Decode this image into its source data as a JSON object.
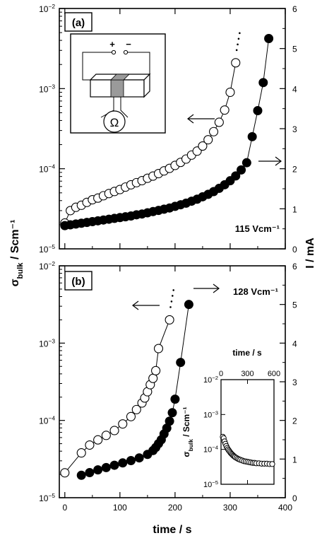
{
  "chart_data": [
    {
      "panel": "(a)",
      "type": "scatter",
      "annotation": "115 Vcm⁻¹",
      "xlabel": "time / s",
      "xlim": [
        -10,
        400
      ],
      "xticks": [
        0,
        100,
        200,
        300,
        400
      ],
      "ylabel_left": "σbulk / Scm⁻¹",
      "ylim_left": [
        1e-05,
        0.01
      ],
      "yscale_left": "log",
      "ylabel_right": "I / mA",
      "ylim_right": [
        0,
        6
      ],
      "yticks_right": [
        0,
        1,
        2,
        3,
        4,
        5,
        6
      ],
      "series": [
        {
          "marker": "open-circle",
          "axis": "left",
          "x": [
            0,
            10,
            20,
            30,
            40,
            50,
            60,
            70,
            80,
            90,
            100,
            110,
            120,
            130,
            140,
            150,
            160,
            170,
            180,
            190,
            200,
            210,
            220,
            230,
            240,
            250,
            260,
            270,
            280,
            290,
            300,
            310
          ],
          "y": [
            2.1e-05,
            3e-05,
            3.3e-05,
            3.5e-05,
            3.8e-05,
            4.1e-05,
            4.3e-05,
            4.6e-05,
            4.9e-05,
            5.2e-05,
            5.5e-05,
            5.9e-05,
            6.3e-05,
            6.7e-05,
            7.1e-05,
            7.6e-05,
            8.1e-05,
            8.7e-05,
            9.4e-05,
            0.000101,
            0.00011,
            0.00012,
            0.000132,
            0.000148,
            0.000166,
            0.000192,
            0.00023,
            0.00029,
            0.00038,
            0.00054,
            0.0009,
            0.0021
          ]
        },
        {
          "marker": "filled-circle",
          "axis": "right",
          "x": [
            0,
            10,
            20,
            30,
            40,
            50,
            60,
            70,
            80,
            90,
            100,
            110,
            120,
            130,
            140,
            150,
            160,
            170,
            180,
            190,
            200,
            210,
            220,
            230,
            240,
            250,
            260,
            270,
            280,
            290,
            300,
            310,
            320,
            330,
            340,
            350,
            360,
            370
          ],
          "y": [
            0.58,
            0.6,
            0.62,
            0.64,
            0.66,
            0.68,
            0.7,
            0.72,
            0.74,
            0.76,
            0.78,
            0.8,
            0.82,
            0.85,
            0.87,
            0.9,
            0.93,
            0.96,
            0.99,
            1.02,
            1.06,
            1.1,
            1.14,
            1.19,
            1.24,
            1.3,
            1.36,
            1.43,
            1.51,
            1.6,
            1.7,
            1.82,
            1.97,
            2.15,
            2.8,
            3.45,
            4.15,
            5.25
          ]
        }
      ]
    },
    {
      "panel": "(b)",
      "type": "scatter",
      "annotation": "128 Vcm⁻¹",
      "xlabel": "time / s",
      "xlim": [
        -10,
        400
      ],
      "xticks": [
        0,
        100,
        200,
        300,
        400
      ],
      "ylabel_left": "σbulk / Scm⁻¹",
      "ylim_left": [
        1e-05,
        0.01
      ],
      "yscale_left": "log",
      "ylabel_right": "I / mA",
      "ylim_right": [
        0,
        6
      ],
      "yticks_right": [
        0,
        1,
        2,
        3,
        4,
        5,
        6
      ],
      "series": [
        {
          "marker": "open-circle",
          "axis": "left",
          "x": [
            0,
            30,
            45,
            60,
            75,
            90,
            105,
            120,
            130,
            140,
            145,
            150,
            155,
            160,
            165,
            170,
            190
          ],
          "y": [
            2.1e-05,
            3.8e-05,
            4.8e-05,
            5.6e-05,
            6.4e-05,
            7.4e-05,
            9e-05,
            0.000112,
            0.000138,
            0.000168,
            0.000195,
            0.000235,
            0.00029,
            0.00035,
            0.00044,
            0.00085,
            0.002
          ]
        },
        {
          "marker": "filled-circle",
          "axis": "right",
          "x": [
            30,
            45,
            60,
            75,
            90,
            105,
            120,
            135,
            150,
            160,
            165,
            170,
            175,
            180,
            185,
            190,
            195,
            200,
            210,
            225
          ],
          "y": [
            0.58,
            0.65,
            0.72,
            0.78,
            0.84,
            0.9,
            0.96,
            1.03,
            1.12,
            1.22,
            1.3,
            1.4,
            1.5,
            1.65,
            1.8,
            1.98,
            2.2,
            2.55,
            3.5,
            5.0
          ]
        }
      ],
      "inset": {
        "type": "scatter",
        "xlabel": "time / s",
        "xlim": [
          0,
          600
        ],
        "xticks": [
          0,
          300,
          600
        ],
        "ylabel": "σbulk / Scm⁻¹",
        "ylim": [
          1e-05,
          0.01
        ],
        "yscale": "log",
        "x": [
          20,
          30,
          40,
          50,
          60,
          70,
          80,
          90,
          100,
          110,
          120,
          130,
          140,
          150,
          160,
          175,
          190,
          205,
          220,
          240,
          260,
          280,
          300,
          320,
          340,
          360,
          380,
          400,
          430,
          460,
          490,
          520,
          550,
          580
        ],
        "y": [
          0.00023,
          0.00021,
          0.00017,
          0.000145,
          0.000125,
          0.00011,
          0.0001,
          9.2e-05,
          8.5e-05,
          7.9e-05,
          7.4e-05,
          7e-05,
          6.6e-05,
          6.3e-05,
          6e-05,
          5.7e-05,
          5.4e-05,
          5.2e-05,
          5e-05,
          4.8e-05,
          4.6e-05,
          4.5e-05,
          4.4e-05,
          4.3e-05,
          4.2e-05,
          4.1e-05,
          4.1e-05,
          4e-05,
          4e-05,
          3.9e-05,
          3.9e-05,
          3.9e-05,
          3.8e-05,
          3.8e-05
        ]
      }
    }
  ]
}
